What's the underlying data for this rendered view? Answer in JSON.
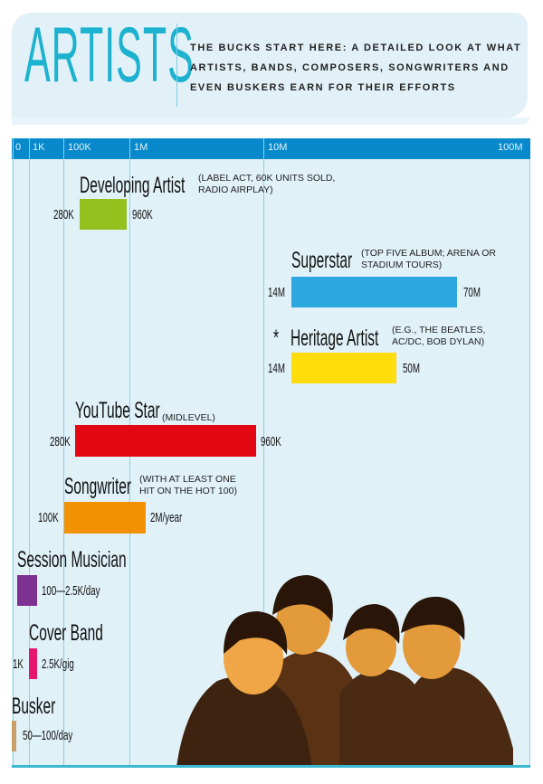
{
  "header": {
    "title": "ARTISTS",
    "subtitle": "THE BUCKS START HERE: A DETAILED LOOK AT WHAT ARTISTS, BANDS, COMPOSERS, SONGWRITERS AND EVEN BUSKERS EARN FOR THEIR EFFORTS"
  },
  "chart_data": {
    "type": "bar",
    "subtype": "range (floating bars)",
    "x_axis_scale": "log-style",
    "x_ticks": [
      "0",
      "1K",
      "100K",
      "1M",
      "10M",
      "100M"
    ],
    "grid": true,
    "series": [
      {
        "name": "Developing Artist",
        "note": "(LABEL ACT, 60K UNITS SOLD,  RADIO AIRPLAY)",
        "low": 280000,
        "high": 960000,
        "low_label": "280K",
        "high_label": "960K",
        "color": "#95c11f"
      },
      {
        "name": "Superstar",
        "note": "(TOP FIVE ALBUM;  ARENA OR STADIUM TOURS)",
        "low": 14000000,
        "high": 70000000,
        "low_label": "14M",
        "high_label": "70M",
        "color": "#2ca7e0"
      },
      {
        "name": "Heritage Artist",
        "marker": "*",
        "note": "(E.G., THE BEATLES, AC/DC, BOB DYLAN)",
        "low": 14000000,
        "high": 50000000,
        "low_label": "14M",
        "high_label": "50M",
        "color": "#ffdc0b"
      },
      {
        "name": "YouTube Star",
        "note": "(MIDLEVEL)",
        "low": 280000,
        "high": 960000,
        "low_label": "280K",
        "high_label": "960K",
        "color": "#e30613"
      },
      {
        "name": "Songwriter",
        "note": "(WITH AT LEAST ONE HIT ON THE HOT 100)",
        "low": 100000,
        "high": 2000000,
        "low_label": "100K",
        "high_label": "2M/year",
        "color": "#f39200"
      },
      {
        "name": "Session Musician",
        "low": 100,
        "high": 2500,
        "range_label": "100—2.5K/day",
        "color": "#7d3190"
      },
      {
        "name": "Cover Band",
        "low": 1000,
        "high": 2500,
        "low_label": "1K",
        "high_label": "2.5K/gig",
        "color": "#e5176e"
      },
      {
        "name": "Busker",
        "low": 50,
        "high": 100,
        "range_label": "50—100/day",
        "color": "#c9a06a"
      }
    ]
  }
}
